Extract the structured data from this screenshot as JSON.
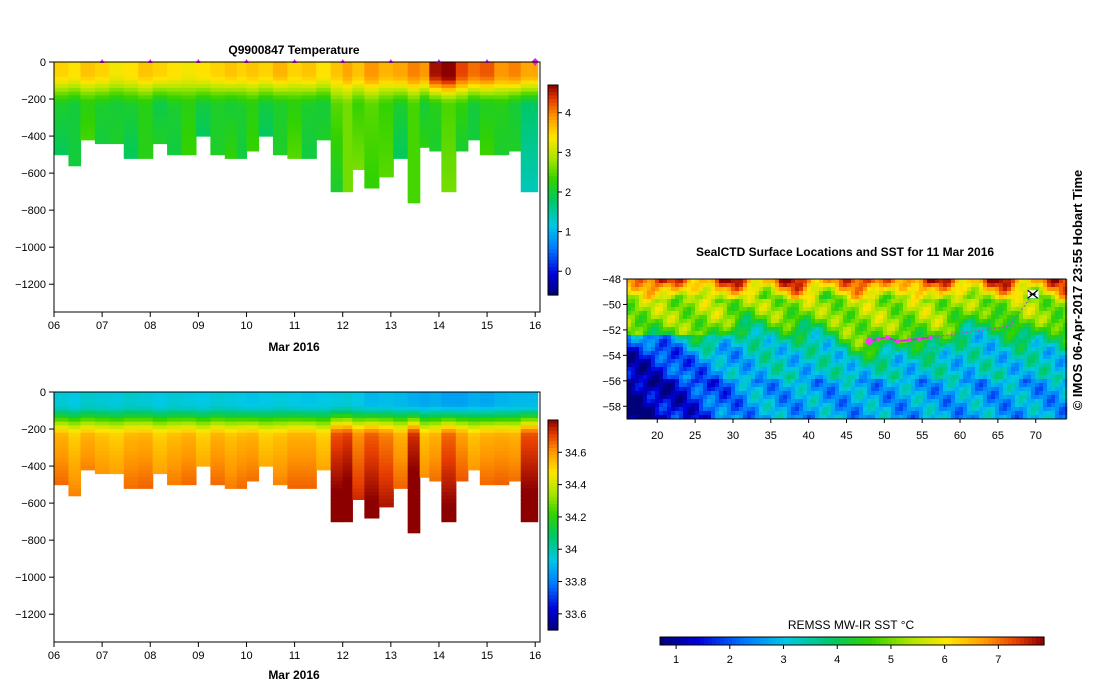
{
  "chart_data": [
    {
      "type": "heatmap",
      "name": "temperature-profile",
      "title": "Q9900847  Temperature",
      "xlabel": "Mar 2016",
      "x_ticks": [
        "06",
        "07",
        "08",
        "09",
        "10",
        "11",
        "12",
        "13",
        "14",
        "15",
        "16"
      ],
      "xlim": [
        6,
        16.1
      ],
      "ylim": [
        -1350,
        0
      ],
      "y_ticks": [
        0,
        -200,
        -400,
        -600,
        -800,
        -1000,
        -1200
      ],
      "colorbar": {
        "min": -0.6,
        "max": 4.7,
        "ticks": [
          0,
          1,
          2,
          3,
          4
        ]
      },
      "profile_days": [
        6.2,
        6.4,
        6.7,
        7.0,
        7.3,
        7.6,
        7.9,
        8.2,
        8.5,
        8.8,
        9.1,
        9.4,
        9.7,
        9.9,
        10.1,
        10.4,
        10.7,
        11.0,
        11.3,
        11.6,
        11.9,
        12.1,
        12.3,
        12.6,
        12.9,
        13.2,
        13.5,
        13.7,
        13.9,
        14.2,
        14.5,
        14.7,
        15.0,
        15.3,
        15.6,
        15.8
      ],
      "max_depth": [
        -500,
        -560,
        -410,
        -430,
        -430,
        -520,
        -520,
        -440,
        -500,
        -500,
        -400,
        -500,
        -510,
        -510,
        -470,
        -400,
        -500,
        -510,
        -520,
        -410,
        -700,
        -700,
        -580,
        -670,
        -620,
        -520,
        -750,
        -450,
        -480,
        -700,
        -470,
        -420,
        -500,
        -500,
        -470,
        -700
      ],
      "surface_temp": [
        3.5,
        3.4,
        3.6,
        3.5,
        3.3,
        3.4,
        3.6,
        3.5,
        3.4,
        3.3,
        3.4,
        3.5,
        3.6,
        3.5,
        3.6,
        3.5,
        3.7,
        3.5,
        3.6,
        3.4,
        3.6,
        3.8,
        3.6,
        3.9,
        3.7,
        3.8,
        4.0,
        3.9,
        4.6,
        4.8,
        4.3,
        4.1,
        4.2,
        3.9,
        4.0,
        3.8
      ],
      "deep_temp": [
        2.1,
        2.0,
        2.2,
        2.1,
        2.0,
        2.1,
        2.2,
        1.9,
        2.1,
        2.2,
        2.0,
        2.1,
        2.0,
        2.1,
        2.2,
        2.0,
        2.1,
        2.2,
        2.1,
        2.0,
        2.5,
        2.6,
        2.3,
        2.5,
        2.3,
        2.1,
        2.4,
        2.0,
        2.2,
        2.4,
        2.3,
        2.0,
        2.1,
        2.2,
        2.0,
        1.8
      ],
      "surfacing_markers_days": [
        7,
        8,
        9,
        10,
        11,
        12,
        13,
        14,
        15,
        16
      ]
    },
    {
      "type": "heatmap",
      "name": "salinity-profile",
      "xlabel": "Mar 2016",
      "x_ticks": [
        "06",
        "07",
        "08",
        "09",
        "10",
        "11",
        "12",
        "13",
        "14",
        "15",
        "16"
      ],
      "xlim": [
        6,
        16.1
      ],
      "ylim": [
        -1350,
        0
      ],
      "y_ticks": [
        0,
        -200,
        -400,
        -600,
        -800,
        -1000,
        -1200
      ],
      "colorbar": {
        "min": 33.5,
        "max": 34.8,
        "ticks": [
          33.6,
          33.8,
          34,
          34.2,
          34.4,
          34.6
        ],
        "tick_labels": [
          "33.6",
          "33.8",
          "34",
          "34.2",
          "34.4",
          "34.6"
        ]
      },
      "surface_sal": [
        33.95,
        33.93,
        33.96,
        33.95,
        33.94,
        33.96,
        33.95,
        33.93,
        33.95,
        33.94,
        33.93,
        33.95,
        33.94,
        33.93,
        33.92,
        33.93,
        33.94,
        33.93,
        33.92,
        33.93,
        33.94,
        33.95,
        33.93,
        33.9,
        33.91,
        33.9,
        33.88,
        33.87,
        33.88,
        33.86,
        33.86,
        33.88,
        33.87,
        33.89,
        33.9,
        33.9
      ],
      "deep_sal": [
        34.55,
        34.5,
        34.55,
        34.52,
        34.5,
        34.54,
        34.55,
        34.5,
        34.53,
        34.55,
        34.5,
        34.55,
        34.52,
        34.54,
        34.55,
        34.5,
        34.52,
        34.55,
        34.55,
        34.5,
        34.68,
        34.7,
        34.6,
        34.66,
        34.62,
        34.55,
        34.72,
        34.52,
        34.55,
        34.65,
        34.58,
        34.52,
        34.55,
        34.56,
        34.55,
        34.68
      ]
    },
    {
      "type": "heatmap",
      "name": "sst-map",
      "title": "SealCTD Surface Locations and SST for 11 Mar 2016",
      "xlim": [
        16,
        74
      ],
      "ylim": [
        -59,
        -48
      ],
      "x_ticks": [
        20,
        25,
        30,
        35,
        40,
        45,
        50,
        55,
        60,
        65,
        70
      ],
      "y_ticks": [
        -48,
        -50,
        -52,
        -54,
        -56,
        -58
      ],
      "colorbar": {
        "label": "REMSS MW-IR SST °C",
        "min": 0.7,
        "max": 7.85,
        "ticks": [
          1,
          2,
          3,
          4,
          5,
          6,
          7
        ]
      },
      "track_points": [
        {
          "lon": 48.0,
          "lat": -52.9,
          "highlight": true
        },
        {
          "lon": 49.2,
          "lat": -52.7
        },
        {
          "lon": 50.4,
          "lat": -52.6
        },
        {
          "lon": 51.8,
          "lat": -52.9
        },
        {
          "lon": 53.3,
          "lat": -52.8
        },
        {
          "lon": 54.6,
          "lat": -52.7
        },
        {
          "lon": 56.1,
          "lat": -52.6
        }
      ],
      "colony_location": {
        "lon": 69.6,
        "lat": -49.2
      }
    }
  ],
  "credit": "© IMOS 06-Apr-2017 23:55 Hobart Time"
}
